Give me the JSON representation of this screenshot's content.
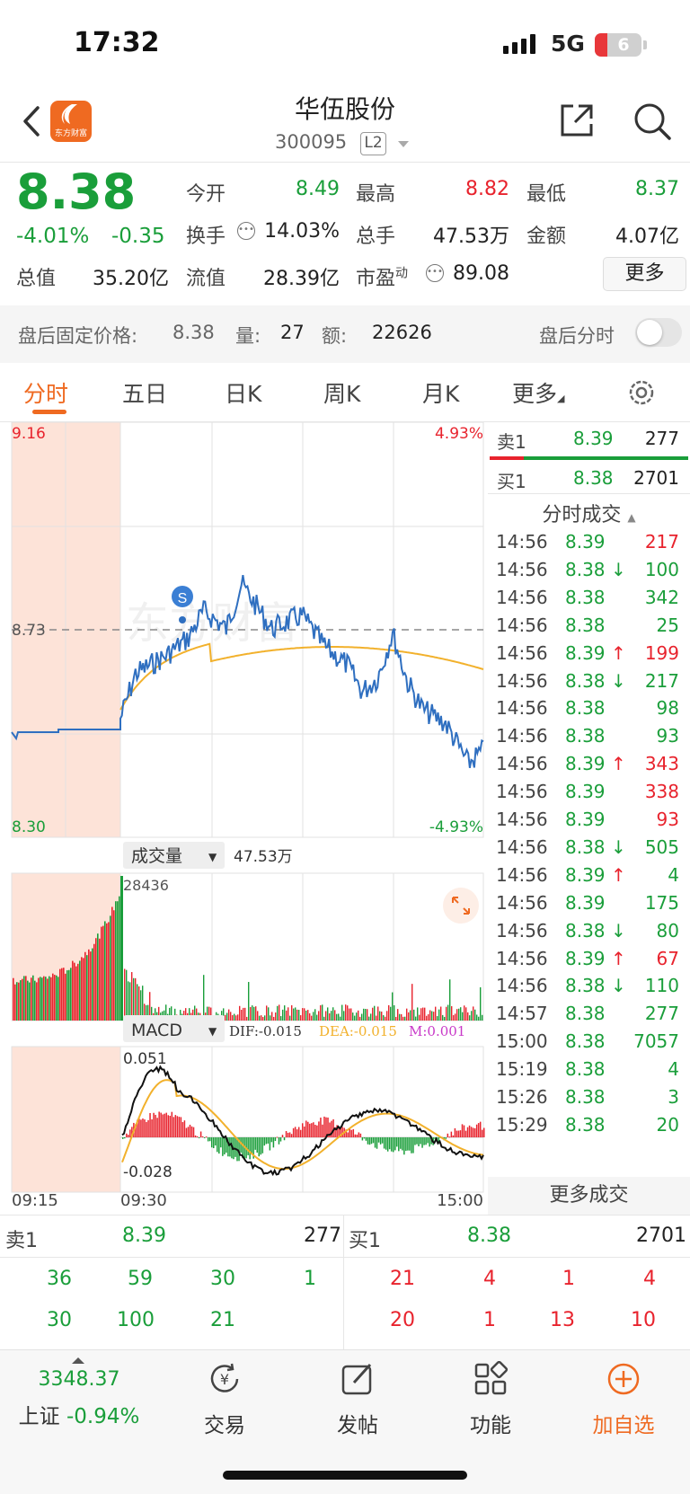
{
  "status": {
    "time": "17:32",
    "network": "5G",
    "battery": "6"
  },
  "header": {
    "name": "华伍股份",
    "code": "300095",
    "level": "L2",
    "logo_text": "东方财富"
  },
  "quote": {
    "price": "8.38",
    "change_pct": "-4.01%",
    "change": "-0.35",
    "fields": [
      {
        "label": "今开",
        "value": "8.49",
        "color": "green"
      },
      {
        "label": "最高",
        "value": "8.82",
        "color": "red"
      },
      {
        "label": "最低",
        "value": "8.37",
        "color": "green"
      },
      {
        "label": "换手",
        "value": "14.03%",
        "color": "dark"
      },
      {
        "label": "总手",
        "value": "47.53万",
        "color": "dark"
      },
      {
        "label": "金额",
        "value": "4.07亿",
        "color": "dark"
      },
      {
        "label": "总值",
        "value": "35.20亿",
        "color": "dark"
      },
      {
        "label": "流值",
        "value": "28.39亿",
        "color": "dark"
      },
      {
        "label": "市盈",
        "sup": "动",
        "value": "89.08",
        "color": "dark"
      }
    ],
    "more_label": "更多"
  },
  "after_hours": {
    "label": "盘后固定价格:",
    "price": "8.38",
    "vol_label": "量:",
    "vol": "27",
    "amt_label": "额:",
    "amt": "22626",
    "toggle_label": "盘后分时"
  },
  "tabs": [
    "分时",
    "五日",
    "日K",
    "周K",
    "月K",
    "更多"
  ],
  "chart_data": {
    "type": "line",
    "price_axis": {
      "max": "9.16",
      "min": "8.30",
      "ref": "8.73",
      "max_pct": "4.93%",
      "min_pct": "-4.93%"
    },
    "x_labels": [
      "09:15",
      "09:30",
      "15:00"
    ],
    "volume": {
      "label": "成交量",
      "total": "47.53万",
      "max": "28436"
    },
    "macd": {
      "label": "MACD",
      "dif": "DIF:-0.015",
      "dea": "DEA:-0.015",
      "m": "M:0.001",
      "max": "0.051",
      "min": "-0.028"
    },
    "signal_marker": "S",
    "watermark": "东方财富",
    "colors": {
      "price_line": "#2f6fc0",
      "avg_line": "#f2b12c",
      "up": "#e8232d",
      "down": "#1a9e3a",
      "auction_bg": "#fde3d8"
    }
  },
  "order_book": {
    "ask": {
      "label": "卖1",
      "price": "8.39",
      "vol": "277"
    },
    "bid": {
      "label": "买1",
      "price": "8.38",
      "vol": "2701"
    }
  },
  "trades_title": "分时成交",
  "trades": [
    {
      "t": "14:56",
      "p": "8.39",
      "d": "",
      "v": "217",
      "c": "red"
    },
    {
      "t": "14:56",
      "p": "8.38",
      "d": "↓",
      "v": "100",
      "c": "green"
    },
    {
      "t": "14:56",
      "p": "8.38",
      "d": "",
      "v": "342",
      "c": "green"
    },
    {
      "t": "14:56",
      "p": "8.38",
      "d": "",
      "v": "25",
      "c": "green"
    },
    {
      "t": "14:56",
      "p": "8.39",
      "d": "↑",
      "v": "199",
      "c": "red"
    },
    {
      "t": "14:56",
      "p": "8.38",
      "d": "↓",
      "v": "217",
      "c": "green"
    },
    {
      "t": "14:56",
      "p": "8.38",
      "d": "",
      "v": "98",
      "c": "green"
    },
    {
      "t": "14:56",
      "p": "8.38",
      "d": "",
      "v": "93",
      "c": "green"
    },
    {
      "t": "14:56",
      "p": "8.39",
      "d": "↑",
      "v": "343",
      "c": "red"
    },
    {
      "t": "14:56",
      "p": "8.39",
      "d": "",
      "v": "338",
      "c": "red"
    },
    {
      "t": "14:56",
      "p": "8.39",
      "d": "",
      "v": "93",
      "c": "red"
    },
    {
      "t": "14:56",
      "p": "8.38",
      "d": "↓",
      "v": "505",
      "c": "green"
    },
    {
      "t": "14:56",
      "p": "8.39",
      "d": "↑",
      "v": "4",
      "c": "green"
    },
    {
      "t": "14:56",
      "p": "8.39",
      "d": "",
      "v": "175",
      "c": "green"
    },
    {
      "t": "14:56",
      "p": "8.38",
      "d": "↓",
      "v": "80",
      "c": "green"
    },
    {
      "t": "14:56",
      "p": "8.39",
      "d": "↑",
      "v": "67",
      "c": "red"
    },
    {
      "t": "14:56",
      "p": "8.38",
      "d": "↓",
      "v": "110",
      "c": "green"
    },
    {
      "t": "14:57",
      "p": "8.38",
      "d": "",
      "v": "277",
      "c": "green"
    },
    {
      "t": "15:00",
      "p": "8.38",
      "d": "",
      "v": "7057",
      "c": "green"
    },
    {
      "t": "15:19",
      "p": "8.38",
      "d": "",
      "v": "4",
      "c": "green"
    },
    {
      "t": "15:26",
      "p": "8.38",
      "d": "",
      "v": "3",
      "c": "green"
    },
    {
      "t": "15:29",
      "p": "8.38",
      "d": "",
      "v": "20",
      "c": "green"
    }
  ],
  "more_trades_label": "更多成交",
  "bottom_book": {
    "ask_label": "卖1",
    "ask_price": "8.39",
    "ask_vol": "277",
    "bid_label": "买1",
    "bid_price": "8.38",
    "bid_vol": "2701",
    "ask_rows": [
      [
        "36",
        "59",
        "30",
        "1"
      ],
      [
        "30",
        "100",
        "21",
        ""
      ]
    ],
    "bid_rows": [
      [
        "21",
        "4",
        "1",
        "4"
      ],
      [
        "20",
        "1",
        "13",
        "10"
      ]
    ]
  },
  "nav": {
    "index_value": "3348.37",
    "index_name": "上证",
    "index_pct": "-0.94%",
    "items": [
      "交易",
      "发帖",
      "功能",
      "加自选"
    ]
  }
}
